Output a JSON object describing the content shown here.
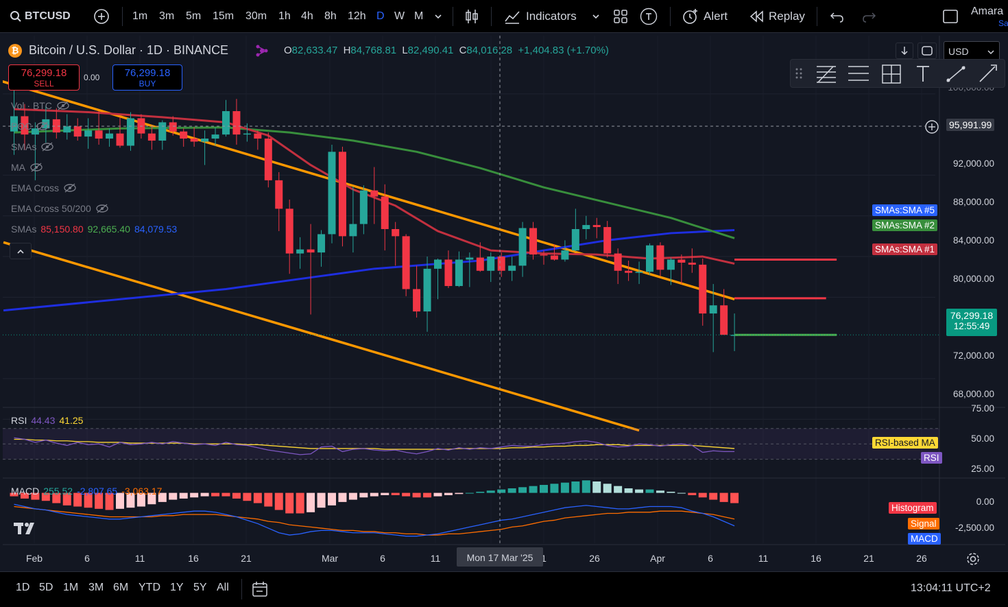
{
  "toolbar": {
    "symbol": "BTCUSD",
    "timeframes": [
      "1m",
      "3m",
      "5m",
      "15m",
      "30m",
      "1h",
      "4h",
      "8h",
      "12h",
      "D",
      "W",
      "M"
    ],
    "active_timeframe": "D",
    "indicators": "Indicators",
    "alert": "Alert",
    "replay": "Replay",
    "user": "Amara",
    "user_sub": "Sa"
  },
  "legend": {
    "title": "Bitcoin / U.S. Dollar · 1D · BINANCE",
    "o_label": "O",
    "o": "82,633.47",
    "h_label": "H",
    "h": "84,768.81",
    "l_label": "L",
    "l": "82,490.41",
    "c_label": "C",
    "c": "84,016.28",
    "change": "+1,404.83 (+1.70%)"
  },
  "trade": {
    "sell_price": "76,299.18",
    "sell_label": "SELL",
    "spread": "0.00",
    "buy_price": "76,299.18",
    "buy_label": "BUY"
  },
  "currency": "USD",
  "indicators": [
    "Vol · BTC",
    "POC",
    "SMAs",
    "MA",
    "EMA Cross",
    "EMA Cross 50/200"
  ],
  "smas_values": {
    "label": "SMAs",
    "v1": "85,150.80",
    "v2": "92,665.40",
    "v3": "84,079.53"
  },
  "price_axis": {
    "labels": [
      "100,000.00",
      "92,000.00",
      "88,000.00",
      "84,000.00",
      "80,000.00",
      "72,000.00",
      "68,000.00"
    ],
    "crosshair_price": "95,991.99",
    "last_price": "76,299.18",
    "countdown": "12:55:49"
  },
  "series_tags": {
    "sma5": "SMAs:SMA #5",
    "sma2": "SMAs:SMA #2",
    "sma1": "SMAs:SMA #1"
  },
  "rsi": {
    "label": "RSI",
    "v1": "44.43",
    "v2": "41.25",
    "axis": [
      "75.00",
      "50.00",
      "25.00"
    ],
    "tag_ma": "RSI-based MA",
    "tag_rsi": "RSI"
  },
  "macd": {
    "label": "MACD",
    "v1": "255.52",
    "v2": "-2,807.65",
    "v3": "-3,063.17",
    "axis": [
      "0.00",
      "-2,500.00"
    ],
    "tag_hist": "Histogram",
    "tag_signal": "Signal",
    "tag_macd": "MACD"
  },
  "time_axis": {
    "labels": [
      "Feb",
      "6",
      "11",
      "16",
      "21",
      "Mar",
      "6",
      "11",
      "1",
      "26",
      "Apr",
      "6",
      "11",
      "16",
      "21",
      "26"
    ],
    "crosshair": "Mon 17 Mar '25"
  },
  "ranges": [
    "1D",
    "5D",
    "1M",
    "3M",
    "6M",
    "YTD",
    "1Y",
    "5Y",
    "All"
  ],
  "clock": "13:04:11 UTC+2",
  "colors": {
    "bg": "#131722",
    "up": "#26a69a",
    "down": "#f23645",
    "sma_red": "#c2303f",
    "sma_green": "#388e3c",
    "sma_blue": "#1e2ee0",
    "trend": "#ff9800",
    "rsi": "#7e57c2",
    "rsi_ma": "#fdd835",
    "macd": "#2962ff",
    "signal": "#ff6d00"
  },
  "chart_data": {
    "type": "candlestick",
    "ylim": [
      66600,
      101000
    ],
    "price_ticks": [
      100000,
      92000,
      88000,
      84000,
      80000,
      72000,
      68000
    ],
    "candles": [
      [
        96300,
        102400,
        94000,
        97800
      ],
      [
        97800,
        99000,
        94500,
        96000
      ],
      [
        96000,
        97200,
        91500,
        96600
      ],
      [
        96600,
        98800,
        95200,
        97500
      ],
      [
        97500,
        98600,
        95600,
        96200
      ],
      [
        96200,
        98000,
        95500,
        96800
      ],
      [
        96800,
        97600,
        95400,
        95800
      ],
      [
        95800,
        97600,
        94600,
        96400
      ],
      [
        96400,
        98300,
        95000,
        95600
      ],
      [
        95600,
        96600,
        94800,
        96100
      ],
      [
        96100,
        97700,
        94700,
        94900
      ],
      [
        94900,
        98200,
        94400,
        97600
      ],
      [
        97600,
        98000,
        95600,
        96100
      ],
      [
        96100,
        96800,
        94500,
        95400
      ],
      [
        95400,
        97400,
        94500,
        97200
      ],
      [
        97200,
        97800,
        95900,
        96300
      ],
      [
        96300,
        96600,
        94800,
        95600
      ],
      [
        95600,
        96700,
        94800,
        95300
      ],
      [
        95300,
        96400,
        93000,
        95600
      ],
      [
        95600,
        96700,
        94900,
        96000
      ],
      [
        96000,
        99400,
        95800,
        98300
      ],
      [
        98300,
        99500,
        95000,
        96000
      ],
      [
        96000,
        97100,
        95300,
        96100
      ],
      [
        96100,
        96400,
        94500,
        95600
      ],
      [
        95600,
        96200,
        90800,
        91500
      ],
      [
        91500,
        92300,
        86500,
        88700
      ],
      [
        88700,
        89600,
        82300,
        84300
      ],
      [
        84300,
        85900,
        82800,
        84700
      ],
      [
        84700,
        87200,
        78300,
        84400
      ],
      [
        84400,
        86600,
        83000,
        86200
      ],
      [
        86200,
        95000,
        85300,
        94300
      ],
      [
        94300,
        94800,
        85000,
        86000
      ],
      [
        86000,
        90900,
        84400,
        87200
      ],
      [
        87200,
        91000,
        86200,
        90500
      ],
      [
        90500,
        92800,
        87200,
        89900
      ],
      [
        89900,
        91100,
        84600,
        86700
      ],
      [
        86700,
        87400,
        83100,
        86000
      ],
      [
        86000,
        86200,
        80100,
        80800
      ],
      [
        80800,
        83100,
        78000,
        78600
      ],
      [
        78600,
        84000,
        76600,
        82800
      ],
      [
        82800,
        83800,
        79800,
        83700
      ],
      [
        83700,
        84600,
        80900,
        81100
      ],
      [
        81100,
        84500,
        81000,
        83700
      ],
      [
        83700,
        84400,
        81000,
        83900
      ],
      [
        83900,
        85400,
        82500,
        82600
      ],
      [
        82600,
        84400,
        81500,
        84000
      ],
      [
        84000,
        84400,
        82000,
        82600
      ],
      [
        82600,
        84000,
        81600,
        83100
      ],
      [
        83100,
        87400,
        82000,
        86800
      ],
      [
        86800,
        87400,
        83700,
        84200
      ],
      [
        84200,
        84600,
        83200,
        84100
      ],
      [
        84100,
        85200,
        83600,
        83700
      ],
      [
        83700,
        85600,
        83500,
        84600
      ],
      [
        84600,
        88700,
        84500,
        86700
      ],
      [
        86700,
        88000,
        85700,
        87100
      ],
      [
        87100,
        87800,
        85800,
        86900
      ],
      [
        86900,
        87500,
        83900,
        84300
      ],
      [
        84300,
        84800,
        81300,
        82600
      ],
      [
        82600,
        83600,
        81600,
        82400
      ],
      [
        82400,
        83500,
        81300,
        82500
      ],
      [
        82500,
        85300,
        82200,
        85100
      ],
      [
        85100,
        85400,
        82100,
        82700
      ],
      [
        82700,
        83900,
        81200,
        83700
      ],
      [
        83700,
        84200,
        81300,
        83400
      ],
      [
        83400,
        84800,
        82400,
        83200
      ],
      [
        83200,
        83800,
        77200,
        78400
      ],
      [
        78400,
        81300,
        74600,
        79200
      ],
      [
        79200,
        80800,
        76300,
        76300
      ],
      [
        76300,
        78400,
        74700,
        76300
      ]
    ],
    "sma1_red": [
      [
        0,
        98500
      ],
      [
        7,
        98200
      ],
      [
        14,
        97700
      ],
      [
        20,
        97200
      ],
      [
        24,
        95900
      ],
      [
        28,
        93000
      ],
      [
        32,
        90600
      ],
      [
        36,
        89000
      ],
      [
        40,
        86500
      ],
      [
        45,
        84600
      ],
      [
        50,
        84300
      ],
      [
        55,
        84200
      ],
      [
        60,
        83800
      ],
      [
        65,
        84000
      ],
      [
        68,
        83300
      ]
    ],
    "sma2_green": [
      [
        0,
        96200
      ],
      [
        10,
        96600
      ],
      [
        20,
        96700
      ],
      [
        26,
        96200
      ],
      [
        32,
        95400
      ],
      [
        38,
        94300
      ],
      [
        44,
        92700
      ],
      [
        50,
        90800
      ],
      [
        56,
        89300
      ],
      [
        62,
        87800
      ],
      [
        68,
        85800
      ]
    ],
    "sma5_blue": [
      [
        -1,
        78700
      ],
      [
        20,
        80800
      ],
      [
        34,
        82800
      ],
      [
        44,
        83600
      ],
      [
        50,
        84600
      ],
      [
        56,
        85600
      ],
      [
        62,
        86300
      ],
      [
        68,
        86600
      ]
    ],
    "trend_upper": [
      [
        -2,
        101500
      ],
      [
        68,
        79800
      ]
    ],
    "trend_lower": [
      [
        -1,
        85400
      ],
      [
        59,
        66900
      ]
    ],
    "hlines": [
      {
        "from": 68,
        "to": 77,
        "value": 83700,
        "color": "red"
      },
      {
        "from": 68,
        "to": 76,
        "value": 79900,
        "color": "red"
      },
      {
        "from": 68,
        "to": 77,
        "value": 76300,
        "color": "green"
      }
    ],
    "rsi_ylim": [
      10,
      85
    ],
    "rsi": [
      58,
      56,
      52,
      55,
      51,
      48,
      52,
      49,
      50,
      46,
      52,
      49,
      50,
      52,
      50,
      53,
      51,
      49,
      50,
      48,
      52,
      49,
      48,
      45,
      42,
      40,
      38,
      36,
      37,
      46,
      47,
      40,
      43,
      44,
      42,
      41,
      42,
      39,
      37,
      40,
      44,
      42,
      45,
      43,
      45,
      44,
      46,
      48,
      47,
      47,
      49,
      50,
      51,
      53,
      54,
      52,
      48,
      46,
      47,
      50,
      49,
      47,
      49,
      50,
      48,
      39,
      41,
      40,
      40
    ],
    "rsi_ma": [
      56,
      56,
      55,
      55,
      54,
      54,
      53,
      53,
      52,
      52,
      52,
      51,
      51,
      51,
      51,
      51,
      51,
      50,
      50,
      50,
      50,
      50,
      49,
      49,
      48,
      47,
      46,
      45,
      44,
      44,
      44,
      44,
      44,
      44,
      44,
      43,
      43,
      43,
      43,
      43,
      43,
      43,
      44,
      44,
      44,
      44,
      44,
      45,
      45,
      46,
      46,
      47,
      47,
      48,
      48,
      49,
      49,
      49,
      48,
      48,
      48,
      48,
      48,
      48,
      48,
      47,
      46,
      45,
      44
    ],
    "macd_ylim": [
      -4300,
      1000
    ],
    "macd_hist": [
      -300,
      -500,
      -600,
      -700,
      -900,
      -1100,
      -1200,
      -1300,
      -1400,
      -1500,
      -1400,
      -1300,
      -1200,
      -1000,
      -800,
      -600,
      -500,
      -400,
      -300,
      -300,
      -300,
      -500,
      -700,
      -900,
      -1200,
      -1500,
      -1800,
      -1800,
      -1700,
      -1300,
      -1100,
      -800,
      -600,
      -400,
      -300,
      -200,
      -200,
      -300,
      -400,
      -400,
      -300,
      -200,
      -100,
      0,
      100,
      200,
      300,
      400,
      500,
      600,
      700,
      800,
      900,
      1000,
      1100,
      1000,
      800,
      600,
      400,
      300,
      300,
      200,
      100,
      0,
      -200,
      -400,
      -600,
      -800,
      -900
    ],
    "macd": [
      -1000,
      -1200,
      -1400,
      -1500,
      -1700,
      -1900,
      -2000,
      -2100,
      -2200,
      -2300,
      -2300,
      -2200,
      -2100,
      -2000,
      -1900,
      -1800,
      -1700,
      -1600,
      -1600,
      -1700,
      -1900,
      -2100,
      -2400,
      -2700,
      -3100,
      -3500,
      -3700,
      -3600,
      -3400,
      -3300,
      -3300,
      -3400,
      -3500,
      -3500,
      -3500,
      -3600,
      -3700,
      -3800,
      -3800,
      -3700,
      -3600,
      -3400,
      -3200,
      -3000,
      -2800,
      -2600,
      -2400,
      -2300,
      -2100,
      -1900,
      -1700,
      -1500,
      -1300,
      -1200,
      -1100,
      -1200,
      -1300,
      -1400,
      -1400,
      -1300,
      -1200,
      -1200,
      -1200,
      -1300,
      -1600,
      -1800,
      -2100,
      -2500,
      -2900
    ],
    "macd_signal": [
      -1200,
      -1300,
      -1400,
      -1500,
      -1600,
      -1700,
      -1800,
      -1900,
      -2000,
      -2100,
      -2100,
      -2100,
      -2100,
      -2100,
      -2000,
      -2000,
      -1900,
      -1900,
      -1900,
      -1900,
      -2000,
      -2100,
      -2200,
      -2300,
      -2500,
      -2600,
      -2800,
      -2900,
      -3000,
      -3100,
      -3200,
      -3300,
      -3300,
      -3400,
      -3400,
      -3500,
      -3500,
      -3600,
      -3600,
      -3700,
      -3700,
      -3600,
      -3600,
      -3500,
      -3400,
      -3300,
      -3200,
      -3000,
      -2900,
      -2700,
      -2500,
      -2400,
      -2200,
      -2100,
      -2000,
      -1900,
      -1800,
      -1800,
      -1700,
      -1700,
      -1700,
      -1600,
      -1600,
      -1600,
      -1700,
      -1800,
      -1900,
      -2100,
      -2300
    ]
  }
}
